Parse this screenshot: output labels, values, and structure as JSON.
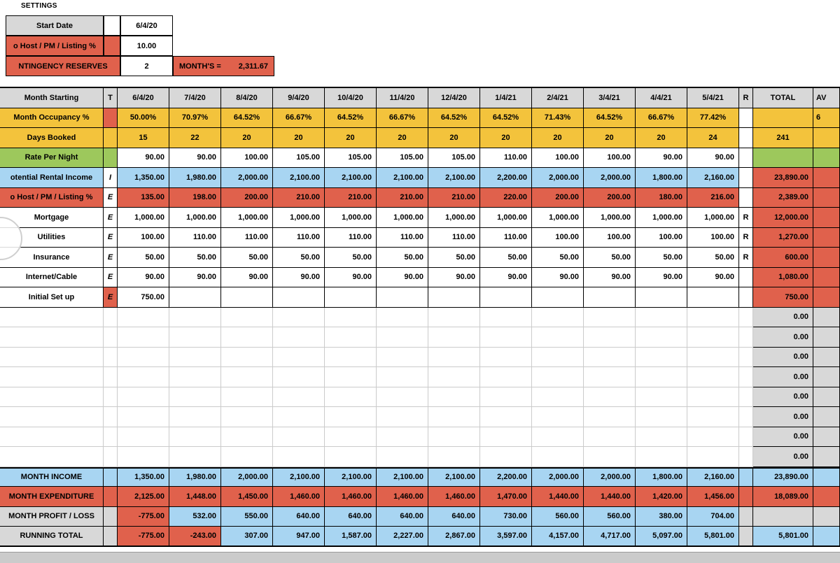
{
  "settings": {
    "title": "SETTINGS",
    "start_date_label": "Start Date",
    "start_date_value": "6/4/20",
    "host_fee_label": "o Host / PM / Listing  %",
    "host_fee_value": "10.00",
    "contingency_label": "NTINGENCY RESERVES",
    "contingency_value": "2",
    "months_label": "MONTH'S =",
    "months_value": "2,311.67"
  },
  "table": {
    "header": {
      "label": "Month Starting",
      "t": "T",
      "months": [
        "6/4/20",
        "7/4/20",
        "8/4/20",
        "9/4/20",
        "10/4/20",
        "11/4/20",
        "12/4/20",
        "1/4/21",
        "2/4/21",
        "3/4/21",
        "4/4/21",
        "5/4/21"
      ],
      "r": "R",
      "total": "TOTAL",
      "avg": "AV"
    },
    "rows": [
      {
        "name": "row-month-occupancy",
        "label": "Month Occupancy %",
        "label_color": "yellow",
        "t": "",
        "t_color": "red",
        "cells": [
          "50.00%",
          "70.97%",
          "64.52%",
          "66.67%",
          "64.52%",
          "66.67%",
          "64.52%",
          "64.52%",
          "71.43%",
          "64.52%",
          "66.67%",
          "77.42%"
        ],
        "cells_color": "yellow",
        "align": "center",
        "r": "",
        "r_color": "white",
        "total": "",
        "total_color": "yellow",
        "total_align": "center",
        "avg": "6",
        "avg_color": "yellow"
      },
      {
        "name": "row-days-booked",
        "label": "Days Booked",
        "label_color": "yellow",
        "t": "",
        "t_color": "yellow",
        "cells": [
          "15",
          "22",
          "20",
          "20",
          "20",
          "20",
          "20",
          "20",
          "20",
          "20",
          "20",
          "24"
        ],
        "cells_color": "yellow",
        "align": "center",
        "r": "",
        "r_color": "white",
        "total": "241",
        "total_color": "yellow",
        "total_align": "center",
        "avg": "",
        "avg_color": "yellow"
      },
      {
        "name": "row-rate-per-night",
        "label": "Rate Per Night",
        "label_color": "green",
        "t": "",
        "t_color": "green",
        "cells": [
          "90.00",
          "90.00",
          "100.00",
          "105.00",
          "105.00",
          "105.00",
          "105.00",
          "110.00",
          "100.00",
          "100.00",
          "90.00",
          "90.00"
        ],
        "cells_color": "white",
        "r": "",
        "r_color": "white",
        "total": "",
        "total_color": "green",
        "total_align": "center",
        "avg": "",
        "avg_color": "green"
      },
      {
        "name": "row-potential-rental-income",
        "label": "otential Rental Income",
        "label_color": "blue",
        "t": "I",
        "t_color": "white",
        "cells": [
          "1,350.00",
          "1,980.00",
          "2,000.00",
          "2,100.00",
          "2,100.00",
          "2,100.00",
          "2,100.00",
          "2,200.00",
          "2,000.00",
          "2,000.00",
          "1,800.00",
          "2,160.00"
        ],
        "cells_color": "blue",
        "r": "",
        "r_color": "white",
        "total": "23,890.00",
        "total_color": "red",
        "avg": "",
        "avg_color": "red"
      },
      {
        "name": "row-host-pm-listing-fee",
        "label": "o Host / PM / Listing  %",
        "label_color": "red",
        "t": "E",
        "t_color": "white",
        "cells": [
          "135.00",
          "198.00",
          "200.00",
          "210.00",
          "210.00",
          "210.00",
          "210.00",
          "220.00",
          "200.00",
          "200.00",
          "180.00",
          "216.00"
        ],
        "cells_color": "red",
        "r": "",
        "r_color": "white",
        "total": "2,389.00",
        "total_color": "red",
        "avg": "",
        "avg_color": "red"
      },
      {
        "name": "row-mortgage",
        "label": "Mortgage",
        "label_color": "white",
        "t": "E",
        "t_color": "white",
        "cells": [
          "1,000.00",
          "1,000.00",
          "1,000.00",
          "1,000.00",
          "1,000.00",
          "1,000.00",
          "1,000.00",
          "1,000.00",
          "1,000.00",
          "1,000.00",
          "1,000.00",
          "1,000.00"
        ],
        "cells_color": "white",
        "r": "R",
        "r_color": "white",
        "total": "12,000.00",
        "total_color": "red",
        "avg": "",
        "avg_color": "red"
      },
      {
        "name": "row-utilities",
        "label": "Utilities",
        "label_color": "white",
        "t": "E",
        "t_color": "white",
        "cells": [
          "100.00",
          "110.00",
          "110.00",
          "110.00",
          "110.00",
          "110.00",
          "110.00",
          "110.00",
          "100.00",
          "100.00",
          "100.00",
          "100.00"
        ],
        "cells_color": "white",
        "r": "R",
        "r_color": "white",
        "total": "1,270.00",
        "total_color": "red",
        "avg": "",
        "avg_color": "red"
      },
      {
        "name": "row-insurance",
        "label": "Insurance",
        "label_color": "white",
        "t": "E",
        "t_color": "white",
        "cells": [
          "50.00",
          "50.00",
          "50.00",
          "50.00",
          "50.00",
          "50.00",
          "50.00",
          "50.00",
          "50.00",
          "50.00",
          "50.00",
          "50.00"
        ],
        "cells_color": "white",
        "r": "R",
        "r_color": "white",
        "total": "600.00",
        "total_color": "red",
        "avg": "",
        "avg_color": "red"
      },
      {
        "name": "row-internet-cable",
        "label": "Internet/Cable",
        "label_color": "white",
        "t": "E",
        "t_color": "white",
        "cells": [
          "90.00",
          "90.00",
          "90.00",
          "90.00",
          "90.00",
          "90.00",
          "90.00",
          "90.00",
          "90.00",
          "90.00",
          "90.00",
          "90.00"
        ],
        "cells_color": "white",
        "r": "",
        "r_color": "white",
        "total": "1,080.00",
        "total_color": "red",
        "avg": "",
        "avg_color": "red"
      },
      {
        "name": "row-initial-setup",
        "label": "Initial Set up",
        "label_color": "white",
        "t": "E",
        "t_color": "red",
        "cells": [
          "750.00",
          "",
          "",
          "",
          "",
          "",
          "",
          "",
          "",
          "",
          "",
          ""
        ],
        "cells_color": "white",
        "r": "",
        "r_color": "white",
        "total": "750.00",
        "total_color": "red",
        "avg": "",
        "avg_color": "red"
      },
      {
        "name": "row-empty-1",
        "label": "",
        "t": "",
        "cells": [
          "",
          "",
          "",
          "",
          "",
          "",
          "",
          "",
          "",
          "",
          "",
          ""
        ],
        "r": "",
        "total": "0.00",
        "total_color": "gray",
        "avg": "",
        "avg_color": "gray",
        "light": true
      },
      {
        "name": "row-empty-2",
        "label": "",
        "t": "",
        "cells": [
          "",
          "",
          "",
          "",
          "",
          "",
          "",
          "",
          "",
          "",
          "",
          ""
        ],
        "r": "",
        "total": "0.00",
        "total_color": "gray",
        "avg": "",
        "avg_color": "gray",
        "light": true
      },
      {
        "name": "row-empty-3",
        "label": "",
        "t": "",
        "cells": [
          "",
          "",
          "",
          "",
          "",
          "",
          "",
          "",
          "",
          "",
          "",
          ""
        ],
        "r": "",
        "total": "0.00",
        "total_color": "gray",
        "avg": "",
        "avg_color": "gray",
        "light": true
      },
      {
        "name": "row-empty-4",
        "label": "",
        "t": "",
        "cells": [
          "",
          "",
          "",
          "",
          "",
          "",
          "",
          "",
          "",
          "",
          "",
          ""
        ],
        "r": "",
        "total": "0.00",
        "total_color": "gray",
        "avg": "",
        "avg_color": "gray",
        "light": true
      },
      {
        "name": "row-empty-5",
        "label": "",
        "t": "",
        "cells": [
          "",
          "",
          "",
          "",
          "",
          "",
          "",
          "",
          "",
          "",
          "",
          ""
        ],
        "r": "",
        "total": "0.00",
        "total_color": "gray",
        "avg": "",
        "avg_color": "gray",
        "light": true
      },
      {
        "name": "row-empty-6",
        "label": "",
        "t": "",
        "cells": [
          "",
          "",
          "",
          "",
          "",
          "",
          "",
          "",
          "",
          "",
          "",
          ""
        ],
        "r": "",
        "total": "0.00",
        "total_color": "gray",
        "avg": "",
        "avg_color": "gray",
        "light": true
      },
      {
        "name": "row-empty-7",
        "label": "",
        "t": "",
        "cells": [
          "",
          "",
          "",
          "",
          "",
          "",
          "",
          "",
          "",
          "",
          "",
          ""
        ],
        "r": "",
        "total": "0.00",
        "total_color": "gray",
        "avg": "",
        "avg_color": "gray",
        "light": true
      },
      {
        "name": "row-empty-8",
        "label": "",
        "t": "",
        "cells": [
          "",
          "",
          "",
          "",
          "",
          "",
          "",
          "",
          "",
          "",
          "",
          ""
        ],
        "r": "",
        "total": "0.00",
        "total_color": "gray",
        "avg": "",
        "avg_color": "gray",
        "light": true
      },
      {
        "name": "row-month-income",
        "thick_top": true,
        "label": "MONTH INCOME",
        "label_color": "blue",
        "t": "",
        "t_color": "blue",
        "cells": [
          "1,350.00",
          "1,980.00",
          "2,000.00",
          "2,100.00",
          "2,100.00",
          "2,100.00",
          "2,100.00",
          "2,200.00",
          "2,000.00",
          "2,000.00",
          "1,800.00",
          "2,160.00"
        ],
        "cells_color": "blue",
        "r": "",
        "r_color": "blue",
        "total": "23,890.00",
        "total_color": "blue",
        "avg": "",
        "avg_color": "blue"
      },
      {
        "name": "row-month-expenditure",
        "label": "MONTH EXPENDITURE",
        "label_color": "red",
        "t": "",
        "t_color": "red",
        "cells": [
          "2,125.00",
          "1,448.00",
          "1,450.00",
          "1,460.00",
          "1,460.00",
          "1,460.00",
          "1,460.00",
          "1,470.00",
          "1,440.00",
          "1,440.00",
          "1,420.00",
          "1,456.00"
        ],
        "cells_color": "red",
        "r": "",
        "r_color": "red",
        "total": "18,089.00",
        "total_color": "red",
        "avg": "",
        "avg_color": "red"
      },
      {
        "name": "row-month-profit-loss",
        "label": "MONTH PROFIT / LOSS",
        "label_color": "gray",
        "t": "",
        "t_color": "gray",
        "cells": [
          "-775.00",
          "532.00",
          "550.00",
          "640.00",
          "640.00",
          "640.00",
          "640.00",
          "730.00",
          "560.00",
          "560.00",
          "380.00",
          "704.00"
        ],
        "cells_colors": [
          "red",
          "blue",
          "blue",
          "blue",
          "blue",
          "blue",
          "blue",
          "blue",
          "blue",
          "blue",
          "blue",
          "blue"
        ],
        "r": "",
        "r_color": "gray",
        "total": "",
        "total_color": "gray",
        "avg": "",
        "avg_color": "gray"
      },
      {
        "name": "row-running-total",
        "label": "RUNNING TOTAL",
        "label_color": "gray",
        "t": "",
        "t_color": "gray",
        "cells": [
          "-775.00",
          "-243.00",
          "307.00",
          "947.00",
          "1,587.00",
          "2,227.00",
          "2,867.00",
          "3,597.00",
          "4,157.00",
          "4,717.00",
          "5,097.00",
          "5,801.00"
        ],
        "cells_colors": [
          "red",
          "red",
          "blue",
          "blue",
          "blue",
          "blue",
          "blue",
          "blue",
          "blue",
          "blue",
          "blue",
          "blue"
        ],
        "r": "",
        "r_color": "gray",
        "total": "5,801.00",
        "total_color": "blue",
        "avg": "",
        "avg_color": "blue"
      }
    ]
  }
}
